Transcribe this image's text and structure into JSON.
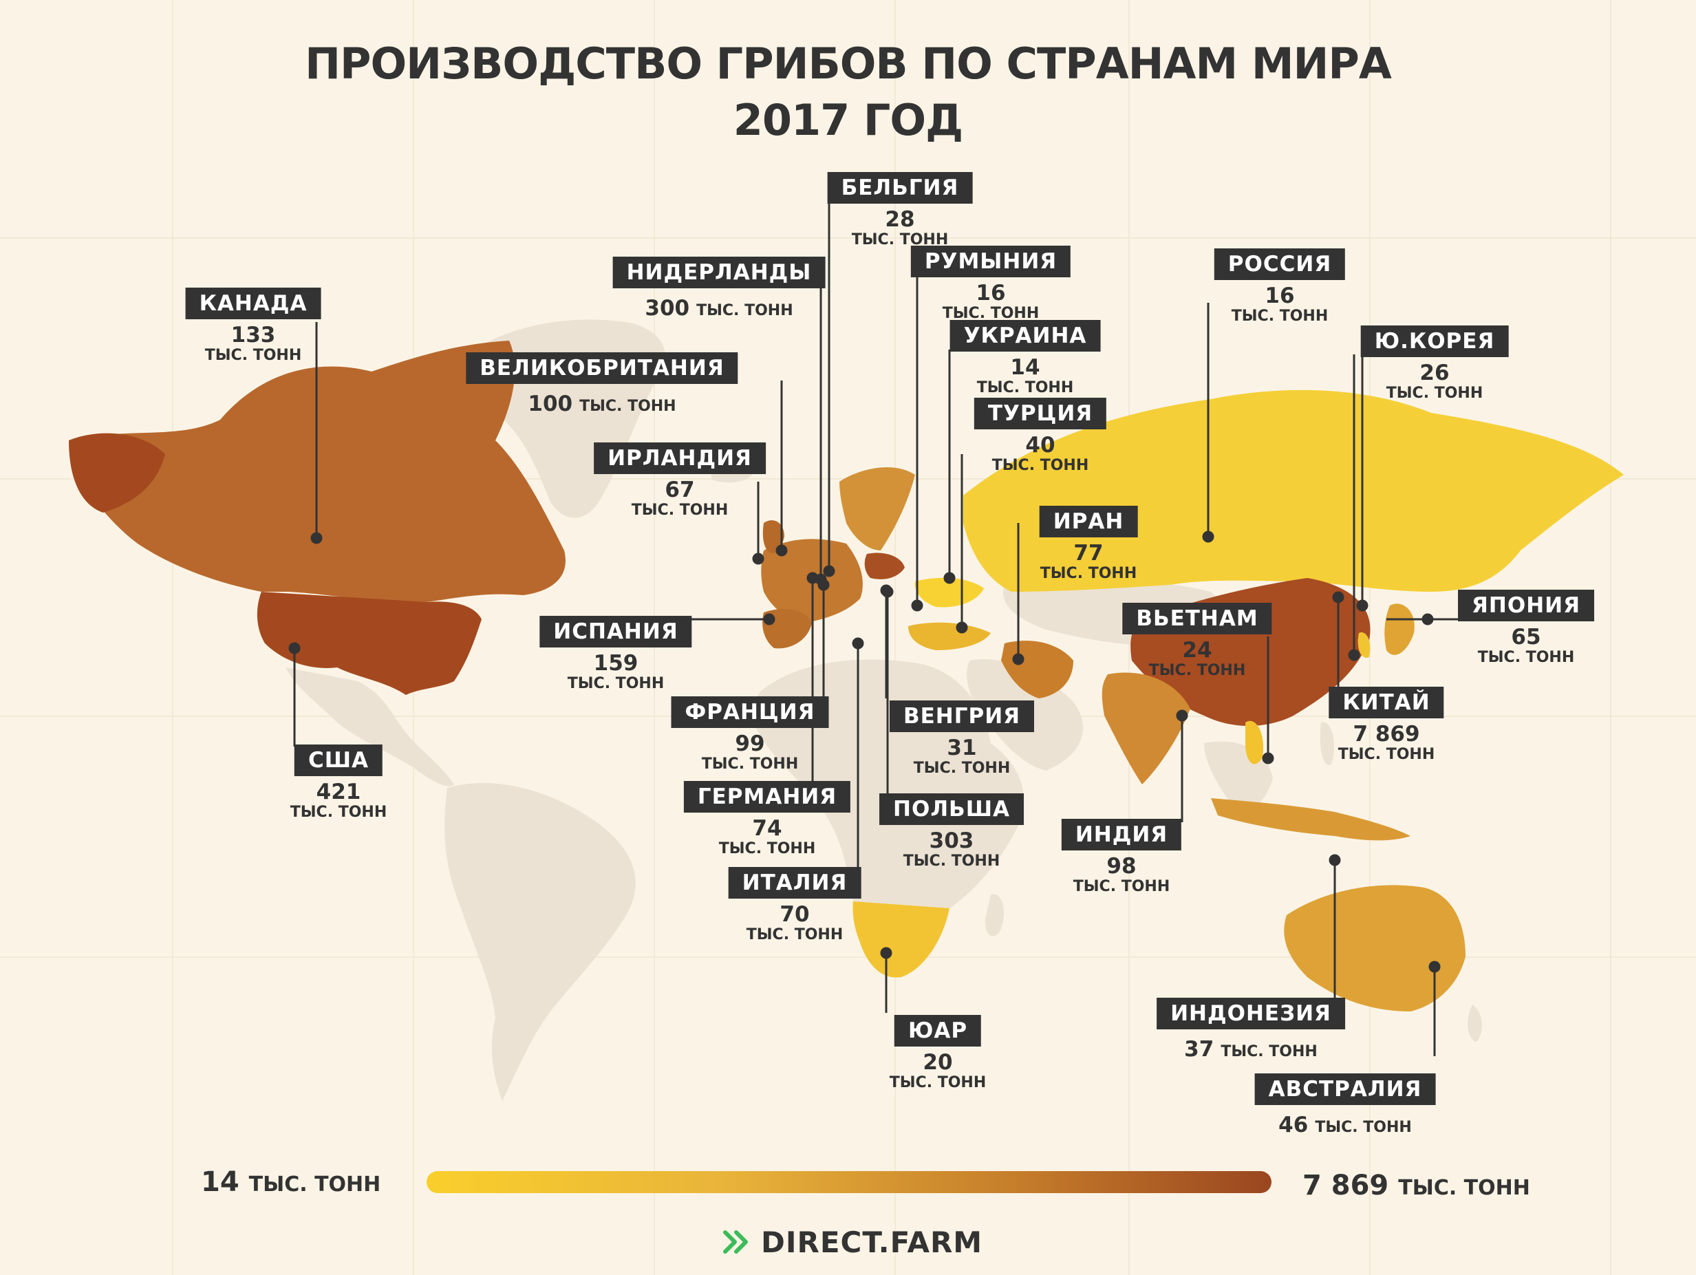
{
  "title": {
    "line1": "ПРОИЗВОДСТВО ГРИБОВ ПО СТРАНАМ МИРА",
    "line2": "2017 ГОД"
  },
  "countries": {
    "belgium": {
      "name": "БЕЛЬГИЯ",
      "value": "28",
      "unit": "ТЫС. ТОНН",
      "tonnes_thousand": 28
    },
    "netherlands": {
      "name": "НИДЕРЛАНДЫ",
      "value": "300",
      "unit": "ТЫС. ТОНН",
      "tonnes_thousand": 300
    },
    "romania": {
      "name": "РУМЫНИЯ",
      "value": "16",
      "unit": "ТЫС. ТОНН",
      "tonnes_thousand": 16
    },
    "russia": {
      "name": "РОССИЯ",
      "value": "16",
      "unit": "ТЫС. ТОНН",
      "tonnes_thousand": 16
    },
    "canada": {
      "name": "КАНАДА",
      "value": "133",
      "unit": "ТЫС. ТОНН",
      "tonnes_thousand": 133
    },
    "ukraine": {
      "name": "УКРАИНА",
      "value": "14",
      "unit": "ТЫС. ТОНН",
      "tonnes_thousand": 14
    },
    "south_korea": {
      "name": "Ю.КОРЕЯ",
      "value": "26",
      "unit": "ТЫС. ТОНН",
      "tonnes_thousand": 26
    },
    "uk": {
      "name": "ВЕЛИКОБРИТАНИЯ",
      "value": "100",
      "unit": "ТЫС. ТОНН",
      "tonnes_thousand": 100
    },
    "turkey": {
      "name": "ТУРЦИЯ",
      "value": "40",
      "unit": "ТЫС. ТОНН",
      "tonnes_thousand": 40
    },
    "ireland": {
      "name": "ИРЛАНДИЯ",
      "value": "67",
      "unit": "ТЫС. ТОНН",
      "tonnes_thousand": 67
    },
    "iran": {
      "name": "ИРАН",
      "value": "77",
      "unit": "ТЫС. ТОНН",
      "tonnes_thousand": 77
    },
    "japan": {
      "name": "ЯПОНИЯ",
      "value": "65",
      "unit": "ТЫС. ТОНН",
      "tonnes_thousand": 65
    },
    "vietnam": {
      "name": "ВЬЕТНАМ",
      "value": "24",
      "unit": "ТЫС. ТОНН",
      "tonnes_thousand": 24
    },
    "spain": {
      "name": "ИСПАНИЯ",
      "value": "159",
      "unit": "ТЫС. ТОНН",
      "tonnes_thousand": 159
    },
    "china": {
      "name": "КИТАЙ",
      "value": "7 869",
      "unit": "ТЫС. ТОНН",
      "tonnes_thousand": 7869
    },
    "france": {
      "name": "ФРАНЦИЯ",
      "value": "99",
      "unit": "ТЫС. ТОНН",
      "tonnes_thousand": 99
    },
    "hungary": {
      "name": "ВЕНГРИЯ",
      "value": "31",
      "unit": "ТЫС. ТОНН",
      "tonnes_thousand": 31
    },
    "usa": {
      "name": "США",
      "value": "421",
      "unit": "ТЫС. ТОНН",
      "tonnes_thousand": 421
    },
    "germany": {
      "name": "ГЕРМАНИЯ",
      "value": "74",
      "unit": "ТЫС. ТОНН",
      "tonnes_thousand": 74
    },
    "poland": {
      "name": "ПОЛЬША",
      "value": "303",
      "unit": "ТЫС. ТОНН",
      "tonnes_thousand": 303
    },
    "india": {
      "name": "ИНДИЯ",
      "value": "98",
      "unit": "ТЫС. ТОНН",
      "tonnes_thousand": 98
    },
    "italy": {
      "name": "ИТАЛИЯ",
      "value": "70",
      "unit": "ТЫС. ТОНН",
      "tonnes_thousand": 70
    },
    "south_africa": {
      "name": "ЮАР",
      "value": "20",
      "unit": "ТЫС. ТОНН",
      "tonnes_thousand": 20
    },
    "indonesia": {
      "name": "ИНДОНЕЗИЯ",
      "value": "37",
      "unit": "ТЫС. ТОНН",
      "tonnes_thousand": 37
    },
    "australia": {
      "name": "АВСТРАЛИЯ",
      "value": "46",
      "unit": "ТЫС. ТОНН",
      "tonnes_thousand": 46
    }
  },
  "scale": {
    "min_value": "14",
    "min_unit": "ТЫС. ТОНН",
    "max_value": "7 869",
    "max_unit": "ТЫС. ТОНН",
    "colors": [
      "#f9cf2c",
      "#e9b43a",
      "#c57d2a",
      "#9a4620"
    ]
  },
  "brand": {
    "name": "DIRECT.FARM",
    "icon": "double-chevron-icon",
    "icon_color": "#3dbb5a"
  },
  "colors": {
    "background": "#fbf4e6",
    "label_bg": "#333333",
    "no_data_land": "#ece2d3"
  }
}
